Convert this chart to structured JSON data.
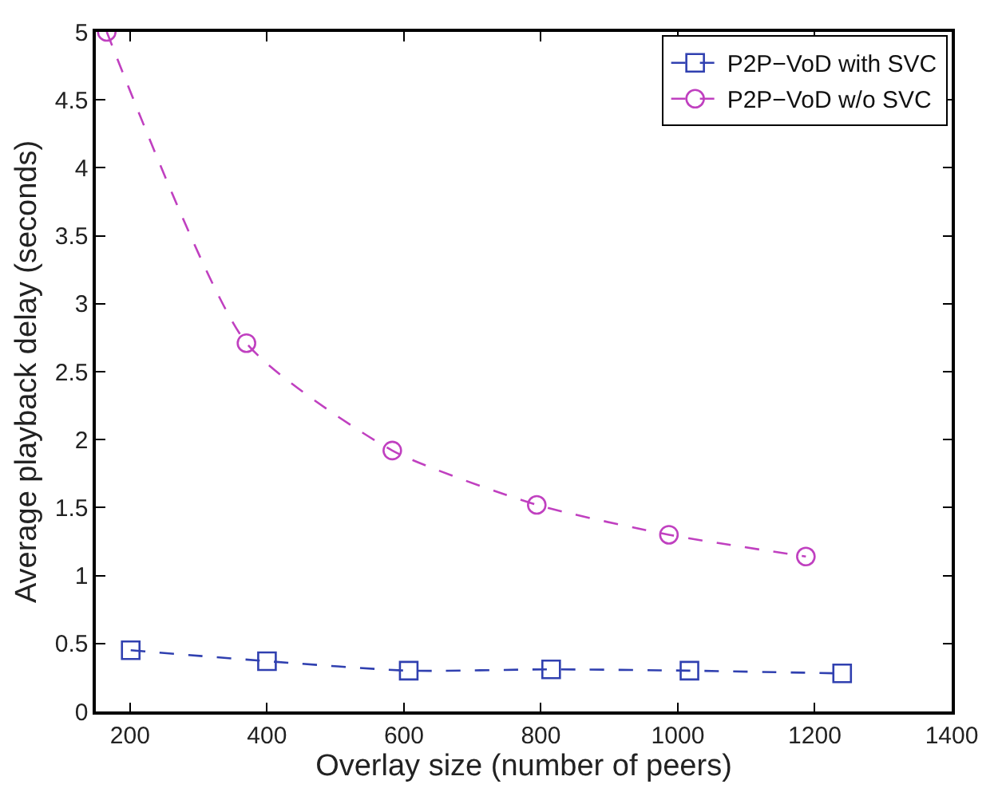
{
  "chart_data": {
    "type": "line",
    "xlabel": "Overlay size (number of peers)",
    "ylabel": "Average playback delay (seconds)",
    "xlim": [
      150,
      1400
    ],
    "xticks": [
      200,
      400,
      600,
      800,
      1000,
      1200,
      1400
    ],
    "ylim": [
      0,
      5
    ],
    "yticks": [
      0,
      0.5,
      1,
      1.5,
      2,
      2.5,
      3,
      3.5,
      4,
      4.5,
      5
    ],
    "legend": "top right",
    "line_style": "dashed",
    "series": [
      {
        "name": "P2P−VoD with SVC",
        "color": "#3040b0",
        "marker": "square",
        "x": [
          201,
          400,
          607,
          815,
          1017,
          1240
        ],
        "values": [
          0.45,
          0.37,
          0.3,
          0.31,
          0.3,
          0.28
        ]
      },
      {
        "name": "P2P−VoD w/o SVC",
        "color": "#c040c0",
        "marker": "circle",
        "x": [
          166,
          370,
          583,
          794,
          987,
          1187
        ],
        "values": [
          5.0,
          2.71,
          1.92,
          1.52,
          1.3,
          1.14
        ]
      }
    ]
  }
}
